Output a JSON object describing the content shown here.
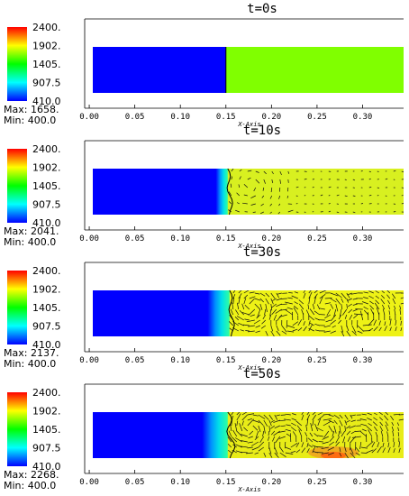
{
  "colorbar": {
    "colors": [
      "#ff0000",
      "#ff8000",
      "#ffff00",
      "#80ff00",
      "#00ff00",
      "#00ff80",
      "#00ffff",
      "#0080ff",
      "#0000ff"
    ],
    "tick_labels": [
      "2400.",
      "1902.",
      "1405.",
      "907.5",
      "410.0"
    ],
    "vmin": 410.0,
    "vmax": 2400.0
  },
  "axis": {
    "xlabel": "X-Axis",
    "xticks": [
      "0.00",
      "0.05",
      "0.10",
      "0.15",
      "0.20",
      "0.25",
      "0.30"
    ],
    "xtick_values": [
      0.0,
      0.05,
      0.1,
      0.15,
      0.2,
      0.25,
      0.3
    ],
    "xlim": [
      -0.005,
      0.345
    ]
  },
  "chart_data": [
    {
      "type": "heatmap",
      "title": "t=0s",
      "max_label": "Max: 1658.",
      "min_label": "Min: 400.0",
      "max": 1658.0,
      "min": 400.0,
      "cold_color": "#0000ff",
      "hot_color": "#80ff00",
      "front_x": 0.15,
      "gradient_width": 0.0,
      "wrinkle": 0.0,
      "vectors": false,
      "hot_spot": false
    },
    {
      "type": "heatmap",
      "title": "t=10s",
      "max_label": "Max: 2041.",
      "min_label": "Min: 400.0",
      "max": 2041.0,
      "min": 400.0,
      "cold_color": "#0000ff",
      "hot_color": "#d8f020",
      "front_x": 0.152,
      "gradient_width": 0.013,
      "wrinkle": 0.004,
      "vectors": true,
      "hot_spot": false
    },
    {
      "type": "heatmap",
      "title": "t=30s",
      "max_label": "Max: 2137.",
      "min_label": "Min: 400.0",
      "max": 2137.0,
      "min": 400.0,
      "cold_color": "#0000ff",
      "hot_color": "#eef216",
      "front_x": 0.154,
      "gradient_width": 0.024,
      "wrinkle": 0.004,
      "vectors": true,
      "hot_spot": false
    },
    {
      "type": "heatmap",
      "title": "t=50s",
      "max_label": "Max: 2268.",
      "min_label": "Min: 400.0",
      "max": 2268.0,
      "min": 400.0,
      "cold_color": "#0000ff",
      "hot_color": "#e8ec18",
      "front_x": 0.152,
      "gradient_width": 0.028,
      "wrinkle": 0.006,
      "vectors": true,
      "hot_spot": true
    }
  ]
}
